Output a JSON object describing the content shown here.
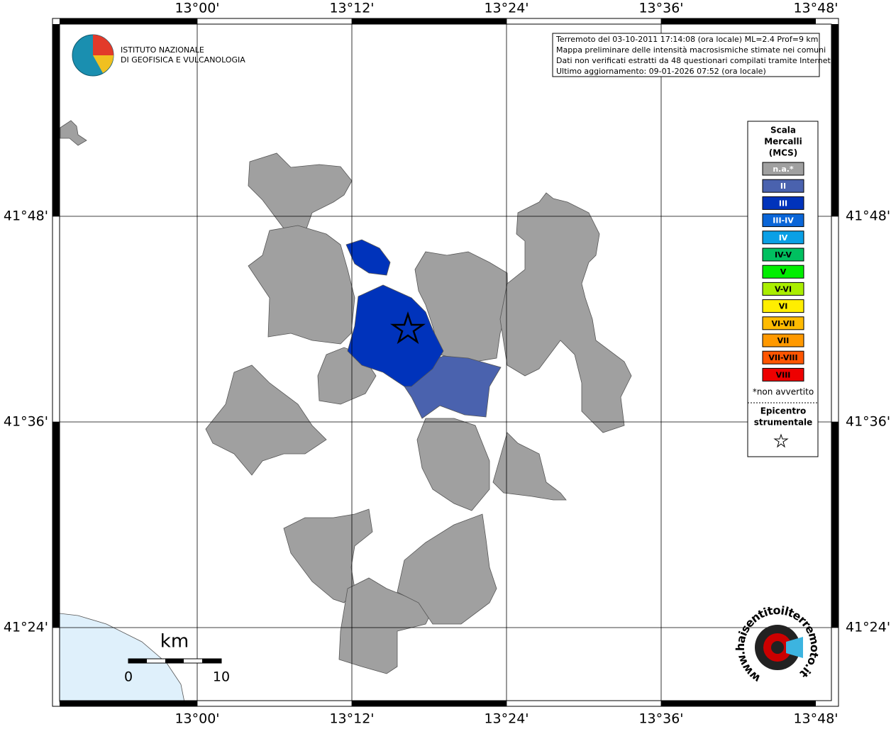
{
  "map": {
    "lon_labels": [
      "13°00'",
      "13°12'",
      "13°24'",
      "13°36'",
      "13°48'"
    ],
    "lat_labels": [
      "41°48'",
      "41°36'",
      "41°24'"
    ]
  },
  "logo": {
    "lines": [
      "ISTITUTO NAZIONALE",
      "DI GEOFISICA E VULCANOLOGIA"
    ]
  },
  "info_box": {
    "lines": [
      "Terremoto del 03-10-2011 17:14:08 (ora locale) ML=2.4 Prof=9 km",
      "Mappa preliminare delle intensità macrosismiche stimate nei comuni",
      "Dati non verificati estratti da 48 questionari compilati tramite Internet.",
      "Ultimo aggiornamento: 09-01-2026 07:52 (ora locale)"
    ]
  },
  "legend": {
    "title": [
      "Scala",
      "Mercalli",
      "(MCS)"
    ],
    "items": [
      {
        "label": "n.a.*",
        "color": "#a0a0a0"
      },
      {
        "label": "II",
        "color": "#4a62ae"
      },
      {
        "label": "III",
        "color": "#0033bb"
      },
      {
        "label": "III-IV",
        "color": "#0a66d8"
      },
      {
        "label": "IV",
        "color": "#0aa0e6"
      },
      {
        "label": "IV-V",
        "color": "#00c060"
      },
      {
        "label": "V",
        "color": "#00ee00"
      },
      {
        "label": "V-VI",
        "color": "#aaee00"
      },
      {
        "label": "VI",
        "color": "#ffee00"
      },
      {
        "label": "VI-VII",
        "color": "#ffbb00"
      },
      {
        "label": "VII",
        "color": "#ff9900"
      },
      {
        "label": "VII-VIII",
        "color": "#ff5500"
      },
      {
        "label": "VIII",
        "color": "#ee0000"
      }
    ],
    "note": "*non avvertito",
    "epicenter_label": [
      "Epicentro",
      "strumentale"
    ]
  },
  "scale_bar": {
    "unit": "km",
    "labels": [
      "0",
      "10"
    ]
  },
  "watermark": "www.haisentitoilterremoto.it"
}
